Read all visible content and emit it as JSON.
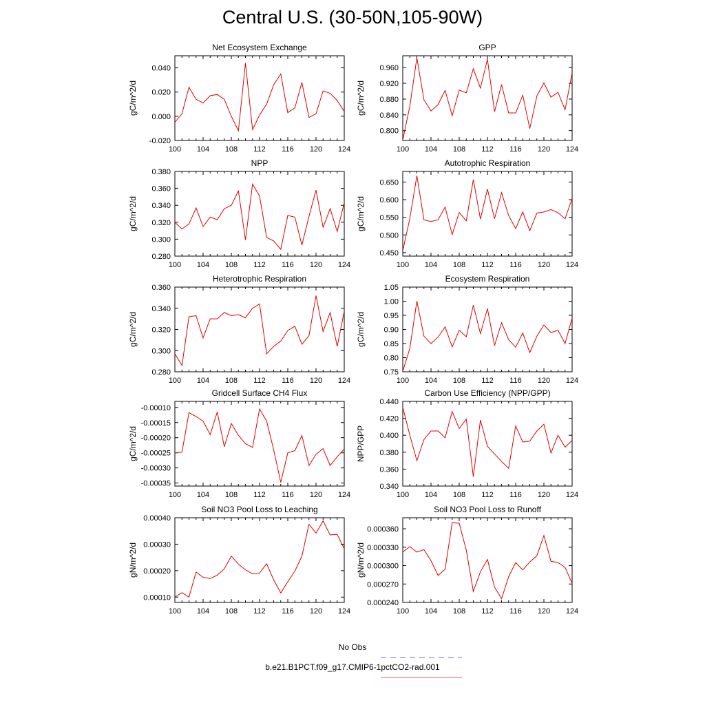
{
  "title": "Central U.S. (30-50N,105-90W)",
  "legend": [
    {
      "label": "No Obs",
      "color": "#6a6adc",
      "dash": true
    },
    {
      "label": "b.e21.B1PCT.f09_g17.CMIP6-1pctCO2-rad.001",
      "color": "#e06060",
      "dash": false
    }
  ],
  "line_color": "#e00000",
  "chart_data": [
    {
      "type": "line",
      "title": "Net Ecosystem Exchange",
      "ylabel": "gC/m^2/d",
      "xlim": [
        100,
        124
      ],
      "ylim": [
        -0.02,
        0.05
      ],
      "xticks": [
        "100",
        "104",
        "108",
        "112",
        "116",
        "120",
        "124"
      ],
      "yticks": [
        "-0.020",
        "0.000",
        "0.020",
        "0.040"
      ],
      "ytick_values": [
        -0.02,
        0.0,
        0.02,
        0.04
      ],
      "x": [
        100,
        101,
        102,
        103,
        104,
        105,
        106,
        107,
        108,
        109,
        110,
        111,
        112,
        113,
        114,
        115,
        116,
        117,
        118,
        119,
        120,
        121,
        122,
        123,
        124
      ],
      "y": [
        -0.005,
        0.002,
        0.024,
        0.014,
        0.011,
        0.017,
        0.018,
        0.014,
        0.0,
        -0.012,
        0.044,
        -0.011,
        0.001,
        0.01,
        0.026,
        0.035,
        0.003,
        0.007,
        0.028,
        -0.001,
        0.002,
        0.021,
        0.019,
        0.013,
        0.004
      ]
    },
    {
      "type": "line",
      "title": "GPP",
      "ylabel": "gC/m^2/d",
      "xlim": [
        100,
        124
      ],
      "ylim": [
        0.775,
        0.99
      ],
      "xticks": [
        "100",
        "104",
        "108",
        "112",
        "116",
        "120",
        "124"
      ],
      "yticks": [
        "0.800",
        "0.840",
        "0.880",
        "0.920",
        "0.960"
      ],
      "ytick_values": [
        0.8,
        0.84,
        0.88,
        0.92,
        0.96
      ],
      "x": [
        100,
        101,
        102,
        103,
        104,
        105,
        106,
        107,
        108,
        109,
        110,
        111,
        112,
        113,
        114,
        115,
        116,
        117,
        118,
        119,
        120,
        121,
        122,
        123,
        124
      ],
      "y": [
        0.776,
        0.862,
        0.985,
        0.878,
        0.85,
        0.866,
        0.902,
        0.838,
        0.903,
        0.896,
        0.957,
        0.908,
        0.981,
        0.848,
        0.917,
        0.845,
        0.845,
        0.89,
        0.805,
        0.888,
        0.921,
        0.885,
        0.897,
        0.853,
        0.947
      ]
    },
    {
      "type": "line",
      "title": "NPP",
      "ylabel": "gC/m^2/d",
      "xlim": [
        100,
        124
      ],
      "ylim": [
        0.28,
        0.38
      ],
      "xticks": [
        "100",
        "104",
        "108",
        "112",
        "116",
        "120",
        "124"
      ],
      "yticks": [
        "0.280",
        "0.300",
        "0.320",
        "0.340",
        "0.360",
        "0.380"
      ],
      "ytick_values": [
        0.28,
        0.3,
        0.32,
        0.34,
        0.36,
        0.38
      ],
      "x": [
        100,
        101,
        102,
        103,
        104,
        105,
        106,
        107,
        108,
        109,
        110,
        111,
        112,
        113,
        114,
        115,
        116,
        117,
        118,
        119,
        120,
        121,
        122,
        123,
        124
      ],
      "y": [
        0.32,
        0.312,
        0.318,
        0.337,
        0.315,
        0.326,
        0.323,
        0.336,
        0.34,
        0.357,
        0.299,
        0.365,
        0.351,
        0.302,
        0.298,
        0.288,
        0.328,
        0.326,
        0.293,
        0.327,
        0.358,
        0.314,
        0.336,
        0.309,
        0.343
      ]
    },
    {
      "type": "line",
      "title": "Autotrophic Respiration",
      "ylabel": "gC/m^2/d",
      "xlim": [
        100,
        124
      ],
      "ylim": [
        0.44,
        0.68
      ],
      "xticks": [
        "100",
        "104",
        "108",
        "112",
        "116",
        "120",
        "124"
      ],
      "yticks": [
        "0.450",
        "0.500",
        "0.550",
        "0.600",
        "0.650"
      ],
      "ytick_values": [
        0.45,
        0.5,
        0.55,
        0.6,
        0.65
      ],
      "x": [
        100,
        101,
        102,
        103,
        104,
        105,
        106,
        107,
        108,
        109,
        110,
        111,
        112,
        113,
        114,
        115,
        116,
        117,
        118,
        119,
        120,
        121,
        122,
        123,
        124
      ],
      "y": [
        0.455,
        0.547,
        0.668,
        0.543,
        0.538,
        0.543,
        0.579,
        0.501,
        0.564,
        0.54,
        0.657,
        0.545,
        0.63,
        0.546,
        0.62,
        0.555,
        0.518,
        0.565,
        0.512,
        0.562,
        0.565,
        0.572,
        0.563,
        0.546,
        0.604
      ]
    },
    {
      "type": "line",
      "title": "Heterotrophic Respiration",
      "ylabel": "gC/m^2/d",
      "xlim": [
        100,
        124
      ],
      "ylim": [
        0.28,
        0.36
      ],
      "xticks": [
        "100",
        "104",
        "108",
        "112",
        "116",
        "120",
        "124"
      ],
      "yticks": [
        "0.280",
        "0.300",
        "0.320",
        "0.340",
        "0.360"
      ],
      "ytick_values": [
        0.28,
        0.3,
        0.32,
        0.34,
        0.36
      ],
      "x": [
        100,
        101,
        102,
        103,
        104,
        105,
        106,
        107,
        108,
        109,
        110,
        111,
        112,
        113,
        114,
        115,
        116,
        117,
        118,
        119,
        120,
        121,
        122,
        123,
        124
      ],
      "y": [
        0.297,
        0.286,
        0.332,
        0.333,
        0.312,
        0.33,
        0.33,
        0.336,
        0.333,
        0.334,
        0.331,
        0.34,
        0.344,
        0.297,
        0.304,
        0.309,
        0.319,
        0.323,
        0.306,
        0.314,
        0.352,
        0.318,
        0.336,
        0.304,
        0.337
      ]
    },
    {
      "type": "line",
      "title": "Ecosystem Respiration",
      "ylabel": "gC/m^2/d",
      "xlim": [
        100,
        124
      ],
      "ylim": [
        0.75,
        1.05
      ],
      "xticks": [
        "100",
        "104",
        "108",
        "112",
        "116",
        "120",
        "124"
      ],
      "yticks": [
        "0.75",
        "0.80",
        "0.85",
        "0.90",
        "0.95",
        "1.00",
        "1.05"
      ],
      "ytick_values": [
        0.75,
        0.8,
        0.85,
        0.9,
        0.95,
        1.0,
        1.05
      ],
      "x": [
        100,
        101,
        102,
        103,
        104,
        105,
        106,
        107,
        108,
        109,
        110,
        111,
        112,
        113,
        114,
        115,
        116,
        117,
        118,
        119,
        120,
        121,
        122,
        123,
        124
      ],
      "y": [
        0.752,
        0.833,
        1.0,
        0.876,
        0.85,
        0.873,
        0.909,
        0.838,
        0.897,
        0.874,
        0.986,
        0.885,
        0.974,
        0.843,
        0.924,
        0.864,
        0.837,
        0.887,
        0.818,
        0.876,
        0.916,
        0.889,
        0.897,
        0.85,
        0.941
      ]
    },
    {
      "type": "line",
      "title": "Gridcell Surface CH4 Flux",
      "ylabel": "gC/m^2/d",
      "xlim": [
        100,
        124
      ],
      "ylim": [
        -0.00036,
        -8e-05
      ],
      "xticks": [
        "100",
        "104",
        "108",
        "112",
        "116",
        "120",
        "124"
      ],
      "yticks": [
        "-0.00035",
        "-0.00030",
        "-0.00025",
        "-0.00020",
        "-0.00015",
        "-0.00010"
      ],
      "ytick_values": [
        -0.00035,
        -0.0003,
        -0.00025,
        -0.0002,
        -0.00015,
        -0.0001
      ],
      "x": [
        100,
        101,
        102,
        103,
        104,
        105,
        106,
        107,
        108,
        109,
        110,
        111,
        112,
        113,
        114,
        115,
        116,
        117,
        118,
        119,
        120,
        121,
        122,
        123,
        124
      ],
      "y": [
        -0.00025,
        -0.000248,
        -0.000117,
        -0.00013,
        -0.000145,
        -0.00019,
        -0.000115,
        -0.00023,
        -0.000153,
        -0.000192,
        -0.00022,
        -0.000232,
        -0.000105,
        -0.000145,
        -0.00024,
        -0.000348,
        -0.00025,
        -0.000243,
        -0.000193,
        -0.000292,
        -0.000255,
        -0.000236,
        -0.000292,
        -0.000263,
        -0.000238
      ]
    },
    {
      "type": "line",
      "title": "Carbon Use Efficiency (NPP/GPP)",
      "ylabel": "NPP/GPP",
      "xlim": [
        100,
        124
      ],
      "ylim": [
        0.34,
        0.44
      ],
      "xticks": [
        "100",
        "104",
        "108",
        "112",
        "116",
        "120",
        "124"
      ],
      "yticks": [
        "0.340",
        "0.360",
        "0.380",
        "0.400",
        "0.420",
        "0.440"
      ],
      "ytick_values": [
        0.34,
        0.36,
        0.38,
        0.4,
        0.42,
        0.44
      ],
      "x": [
        100,
        101,
        102,
        103,
        104,
        105,
        106,
        107,
        108,
        109,
        110,
        111,
        112,
        113,
        114,
        115,
        116,
        117,
        118,
        119,
        120,
        121,
        122,
        123,
        124
      ],
      "y": [
        0.433,
        0.4,
        0.37,
        0.395,
        0.405,
        0.405,
        0.397,
        0.428,
        0.408,
        0.419,
        0.351,
        0.418,
        0.387,
        0.378,
        0.369,
        0.361,
        0.411,
        0.392,
        0.393,
        0.405,
        0.413,
        0.379,
        0.4,
        0.386,
        0.394
      ]
    },
    {
      "type": "line",
      "title": "Soil NO3 Pool Loss to Leaching",
      "ylabel": "gN/m^2/d",
      "xlim": [
        100,
        124
      ],
      "ylim": [
        8e-05,
        0.0004
      ],
      "xticks": [
        "100",
        "104",
        "108",
        "112",
        "116",
        "120",
        "124"
      ],
      "yticks": [
        "0.00010",
        "0.00020",
        "0.00030",
        "0.00040"
      ],
      "ytick_values": [
        0.0001,
        0.0002,
        0.0003,
        0.0004
      ],
      "x": [
        100,
        101,
        102,
        103,
        104,
        105,
        106,
        107,
        108,
        109,
        110,
        111,
        112,
        113,
        114,
        115,
        116,
        117,
        118,
        119,
        120,
        121,
        122,
        123,
        124
      ],
      "y": [
        0.0001,
        0.000117,
        0.0001,
        0.000195,
        0.000175,
        0.00017,
        0.000183,
        0.000207,
        0.000255,
        0.000225,
        0.000203,
        0.000188,
        0.000191,
        0.000226,
        0.000165,
        0.000116,
        0.000158,
        0.000198,
        0.000255,
        0.000375,
        0.000342,
        0.000388,
        0.000335,
        0.000337,
        0.000283
      ]
    },
    {
      "type": "line",
      "title": "Soil NO3 Pool Loss to Runoff",
      "ylabel": "gN/m^2/d",
      "xlim": [
        100,
        124
      ],
      "ylim": [
        0.00024,
        0.000378
      ],
      "xticks": [
        "100",
        "104",
        "108",
        "112",
        "116",
        "120",
        "124"
      ],
      "yticks": [
        "0.000240",
        "0.000270",
        "0.000300",
        "0.000330",
        "0.000360"
      ],
      "ytick_values": [
        0.00024,
        0.00027,
        0.0003,
        0.00033,
        0.00036
      ],
      "x": [
        100,
        101,
        102,
        103,
        104,
        105,
        106,
        107,
        108,
        109,
        110,
        111,
        112,
        113,
        114,
        115,
        116,
        117,
        118,
        119,
        120,
        121,
        122,
        123,
        124
      ],
      "y": [
        0.000322,
        0.000331,
        0.000322,
        0.000326,
        0.000308,
        0.000284,
        0.000294,
        0.00037,
        0.000369,
        0.000325,
        0.000258,
        0.00029,
        0.00031,
        0.000265,
        0.000246,
        0.000282,
        0.000305,
        0.000293,
        0.000306,
        0.000316,
        0.000349,
        0.000307,
        0.000305,
        0.000297,
        0.000271
      ]
    }
  ]
}
